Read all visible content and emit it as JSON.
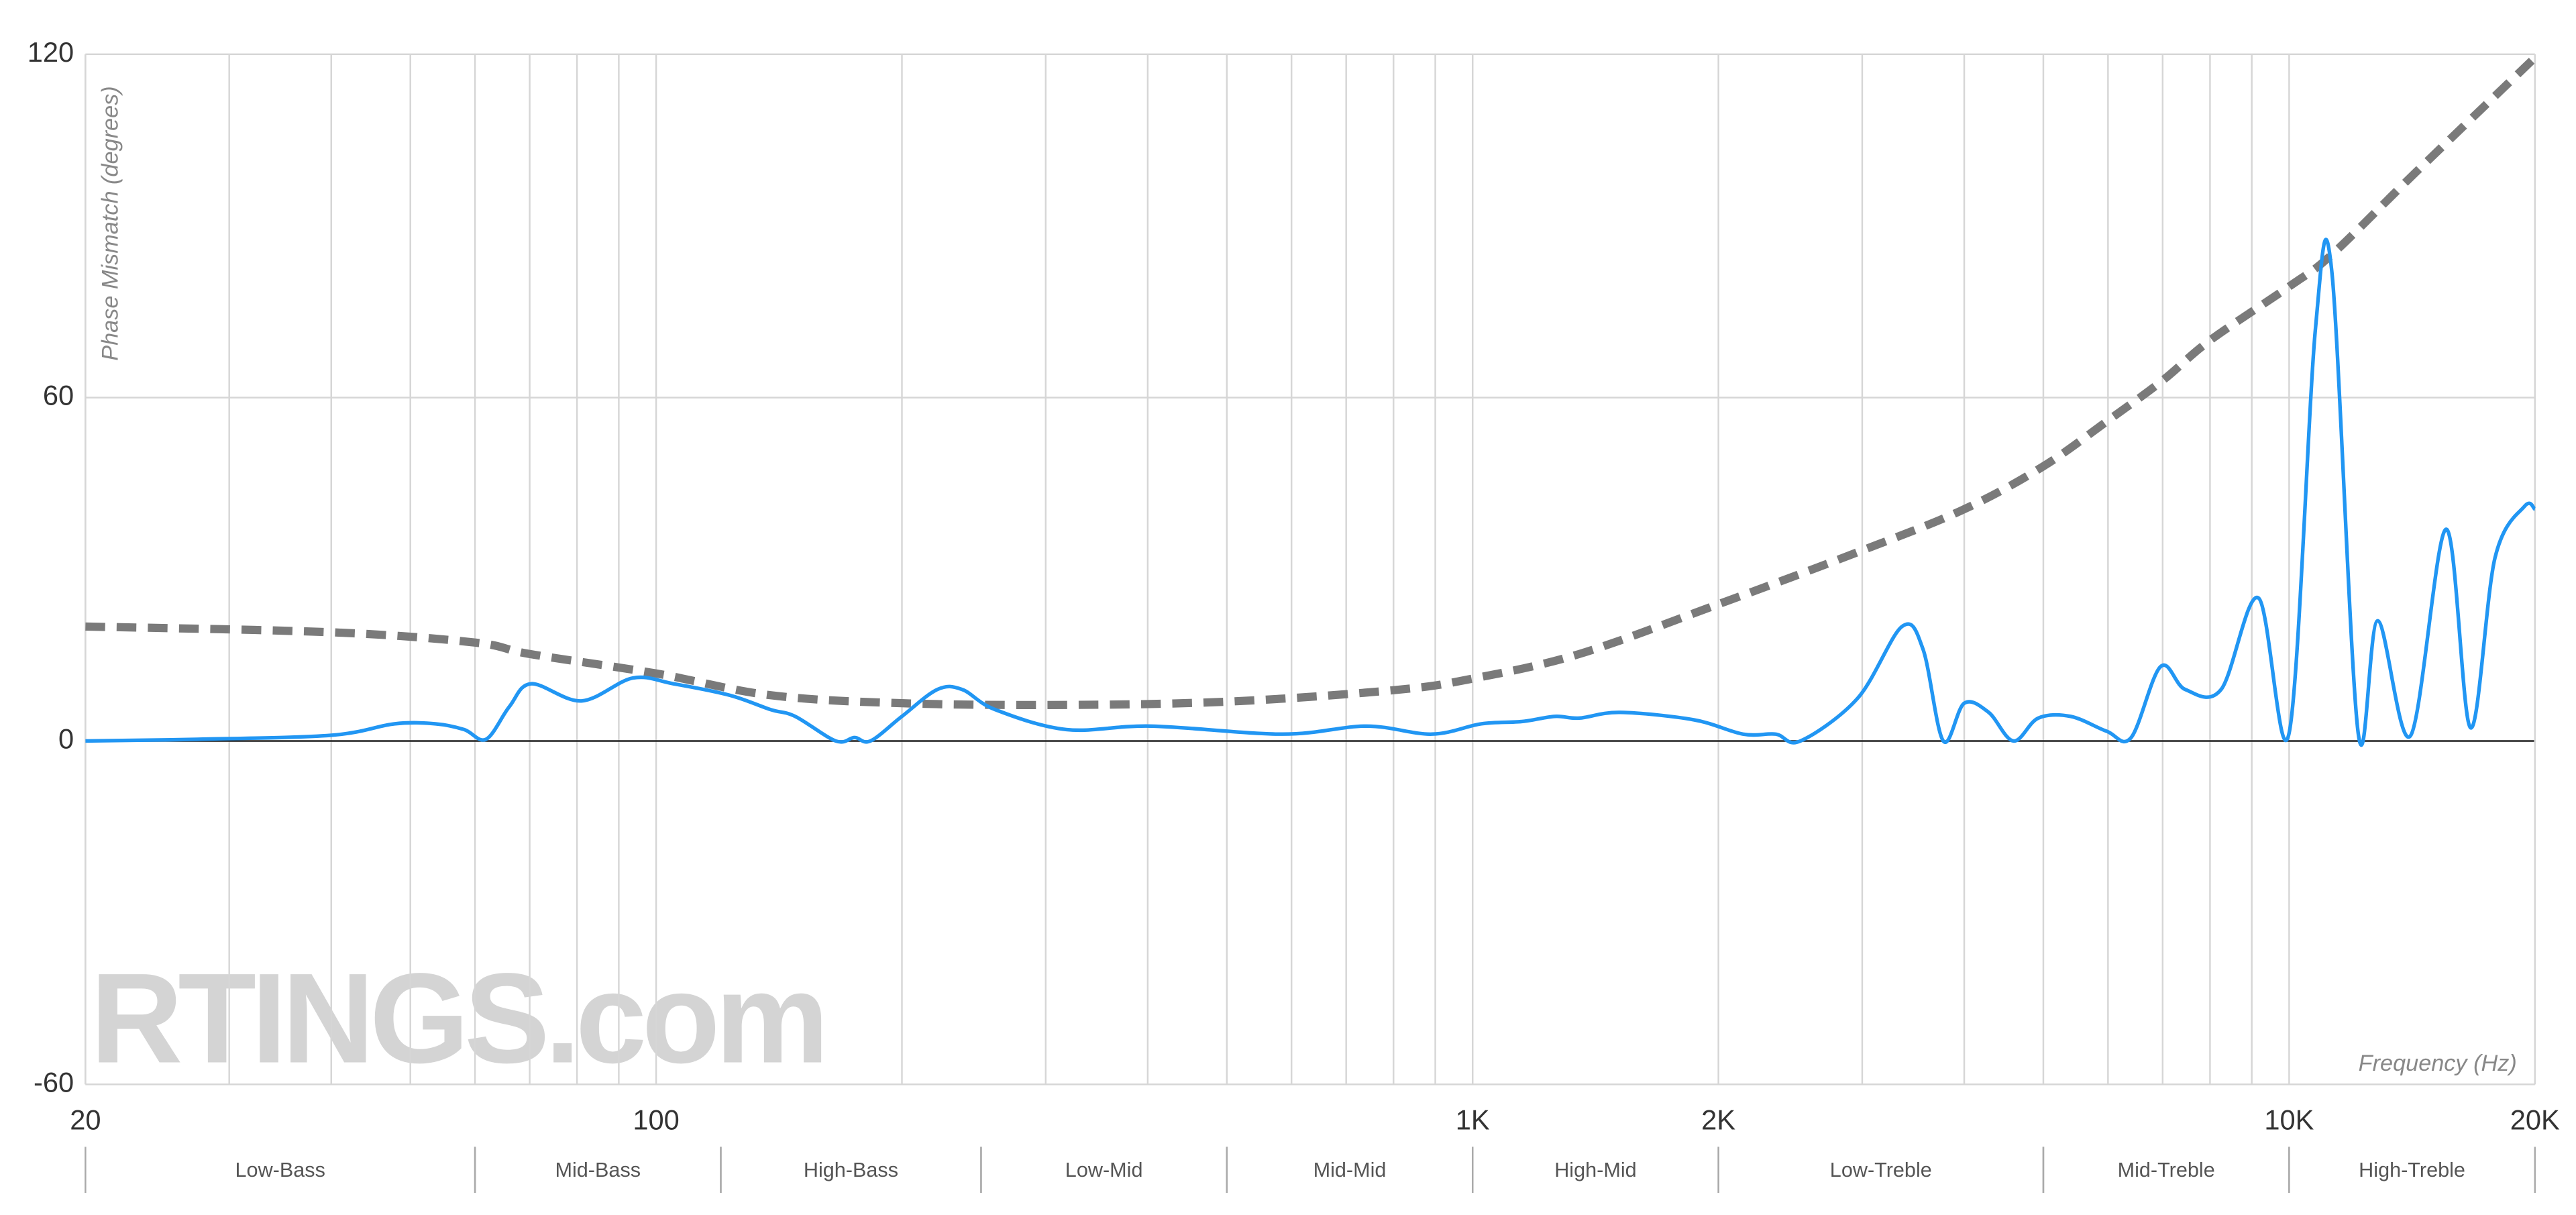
{
  "chart_data": {
    "type": "line",
    "y_label": "Phase Mismatch (degrees)",
    "x_label": "Frequency (Hz)",
    "watermark": "RTINGS.com",
    "log_x": true,
    "xlim": [
      20,
      20000
    ],
    "ylim": [
      -60,
      120
    ],
    "yticks": [
      -60,
      0,
      60,
      120
    ],
    "xticks": [
      20,
      100,
      {
        "value": 1000,
        "label": "1K"
      },
      {
        "value": 2000,
        "label": "2K"
      },
      {
        "value": 10000,
        "label": "10K"
      },
      {
        "value": 20000,
        "label": "20K"
      }
    ],
    "xminor_ticks": [
      30,
      40,
      50,
      60,
      70,
      80,
      90,
      200,
      300,
      400,
      500,
      600,
      700,
      800,
      900,
      3000,
      4000,
      5000,
      6000,
      7000,
      8000,
      9000
    ],
    "grid": true,
    "bands": [
      {
        "name": "Low-Bass",
        "range": [
          20,
          60
        ]
      },
      {
        "name": "Mid-Bass",
        "range": [
          60,
          120
        ]
      },
      {
        "name": "High-Bass",
        "range": [
          120,
          250
        ]
      },
      {
        "name": "Low-Mid",
        "range": [
          250,
          500
        ]
      },
      {
        "name": "Mid-Mid",
        "range": [
          500,
          1000
        ]
      },
      {
        "name": "High-Mid",
        "range": [
          1000,
          2000
        ]
      },
      {
        "name": "Low-Treble",
        "range": [
          2000,
          5000
        ]
      },
      {
        "name": "Mid-Treble",
        "range": [
          5000,
          10000
        ]
      },
      {
        "name": "High-Treble",
        "range": [
          10000,
          20000
        ]
      }
    ],
    "series": [
      {
        "color": "#7a7a7a",
        "dashed": true,
        "x": [
          20,
          40,
          60,
          70,
          100,
          138,
          200,
          318,
          505,
          803,
          1000,
          1351,
          2000,
          3000,
          4000,
          5000,
          6000,
          7000,
          8000,
          10000,
          11280,
          14300,
          20000
        ],
        "values": [
          20,
          19,
          17.2,
          15.2,
          11.8,
          8,
          6.6,
          6.3,
          6.9,
          8.9,
          10.9,
          15.2,
          23.9,
          33.3,
          40.5,
          48,
          56,
          63,
          70,
          79.4,
          85,
          99.4,
          119.4
        ]
      },
      {
        "color": "#2196f3",
        "dashed": false,
        "x": [
          20,
          27.4,
          40,
          47.8,
          53.7,
          58.2,
          61.9,
          66.1,
          70.3,
          81,
          93.6,
          105,
          123,
          138,
          148,
          166,
          175,
          183,
          200,
          221,
          237,
          260,
          318,
          404,
          585,
          741,
          891,
          1025,
          1149,
          1261,
          1351,
          1516,
          1866,
          2144,
          2351,
          2520,
          2963,
          3356,
          3562,
          3771,
          4000,
          4286,
          4596,
          4929,
          5400,
          5978,
          6405,
          6959,
          7460,
          8255,
          9170,
          10000,
          10770,
          11280,
          12150,
          12840,
          14080,
          15570,
          16680,
          17870,
          19420,
          20000
        ],
        "values": [
          0,
          0.3,
          1,
          3,
          3,
          2,
          0.3,
          6,
          10,
          7,
          11,
          10,
          8,
          5.5,
          4.3,
          0,
          0.6,
          0,
          4.3,
          9,
          9,
          5.5,
          2,
          2.6,
          1.2,
          2.6,
          1.2,
          3,
          3.4,
          4.3,
          4,
          5,
          3.7,
          1.2,
          1.2,
          0,
          7.5,
          20,
          16,
          0,
          6.6,
          5,
          0,
          4,
          4.3,
          1.7,
          0.6,
          13,
          9,
          9,
          25,
          1.4,
          72,
          82,
          1.4,
          21,
          0.9,
          37,
          2.3,
          32,
          41,
          40.5
        ]
      }
    ]
  }
}
